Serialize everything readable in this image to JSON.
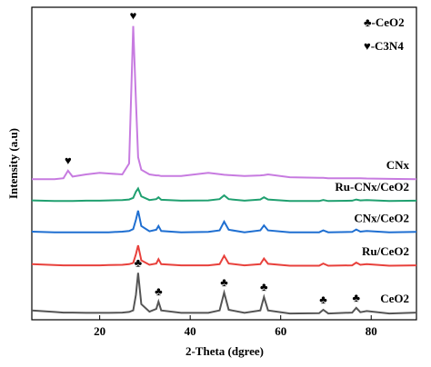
{
  "chart_data": {
    "type": "line",
    "xlabel": "2-Theta (dgree)",
    "ylabel": "Intensity (a.u)",
    "xlim": [
      5,
      90
    ],
    "ylim": [
      0,
      100
    ],
    "xticks": [
      20,
      40,
      60,
      80
    ],
    "x": [
      5,
      10,
      12,
      13,
      14,
      17,
      20,
      22,
      25,
      26.5,
      27.4,
      28,
      28.5,
      29.2,
      31,
      32.5,
      33,
      33.6,
      38,
      44,
      46.5,
      47.5,
      48.5,
      52,
      55.5,
      56.3,
      57.2,
      62,
      68.5,
      69.4,
      70.5,
      75.8,
      76.7,
      77.6,
      79,
      84,
      90
    ],
    "series": [
      {
        "name": "CeO2",
        "color": "#555555",
        "values": [
          3,
          2.5,
          2.3,
          2.3,
          2.3,
          2.2,
          2.2,
          2.2,
          2.3,
          2.5,
          3,
          8,
          15,
          5,
          2.6,
          3.5,
          5.8,
          3,
          2.2,
          2.2,
          3,
          8.7,
          3.2,
          2.2,
          3,
          7.3,
          3,
          2,
          2.1,
          3.2,
          2,
          2.3,
          3.8,
          2.4,
          2.8,
          2,
          2.3
        ]
      },
      {
        "name": "Ru/CeO2",
        "color": "#e8413c",
        "values": [
          17.8,
          17.5,
          17.4,
          17.4,
          17.4,
          17.4,
          17.4,
          17.5,
          17.6,
          17.8,
          18.2,
          21,
          23.8,
          19,
          17.6,
          18,
          19.4,
          17.8,
          17.4,
          17.4,
          17.8,
          20.5,
          18,
          17.4,
          17.8,
          19.6,
          17.9,
          17.3,
          17.3,
          18,
          17.3,
          17.4,
          18.3,
          17.6,
          17.8,
          17.3,
          17.4
        ]
      },
      {
        "name": "CNx/CeO2",
        "color": "#1f6fd1",
        "values": [
          28.2,
          28,
          28,
          28,
          28,
          28,
          28,
          28,
          28.2,
          28.4,
          29,
          32,
          34.9,
          30,
          28.3,
          28.8,
          30,
          28.4,
          28,
          28.1,
          28.6,
          31.4,
          28.8,
          28,
          28.6,
          30.2,
          28.6,
          28,
          28,
          28.6,
          28,
          28.1,
          28.9,
          28.2,
          28.4,
          28,
          28.1
        ]
      },
      {
        "name": "Ru-CNx/CeO2",
        "color": "#20a070",
        "values": [
          38.2,
          38,
          38,
          38,
          38,
          38.1,
          38.1,
          38.2,
          38.3,
          38.5,
          39,
          41,
          42,
          39.5,
          38.3,
          38.6,
          39.2,
          38.4,
          38.1,
          38.2,
          38.6,
          39.8,
          38.6,
          38.1,
          38.5,
          39.2,
          38.5,
          38,
          38,
          38.3,
          38,
          38.1,
          38.5,
          38.2,
          38.3,
          38,
          38.1
        ]
      },
      {
        "name": "CNx",
        "color": "#c77be0",
        "values": [
          45,
          45,
          45.3,
          47.7,
          45.8,
          46.5,
          47,
          46.8,
          46.5,
          50,
          94,
          70,
          52,
          48,
          46.5,
          46.2,
          46.2,
          46,
          46,
          47,
          46.6,
          46.4,
          46.3,
          46,
          46.2,
          46.3,
          46.5,
          45.6,
          45.4,
          45.4,
          45.3,
          45.3,
          45.3,
          45.3,
          45.2,
          45.1,
          45
        ]
      }
    ],
    "peak_markers": [
      {
        "symbol": "♣",
        "x": [
          28.5,
          33,
          47.5,
          56.3,
          69.4,
          76.7
        ]
      },
      {
        "symbol": "♥",
        "x": [
          13,
          27.4
        ]
      }
    ],
    "key": [
      "♣-CeO2",
      "♥-C3N4"
    ]
  }
}
